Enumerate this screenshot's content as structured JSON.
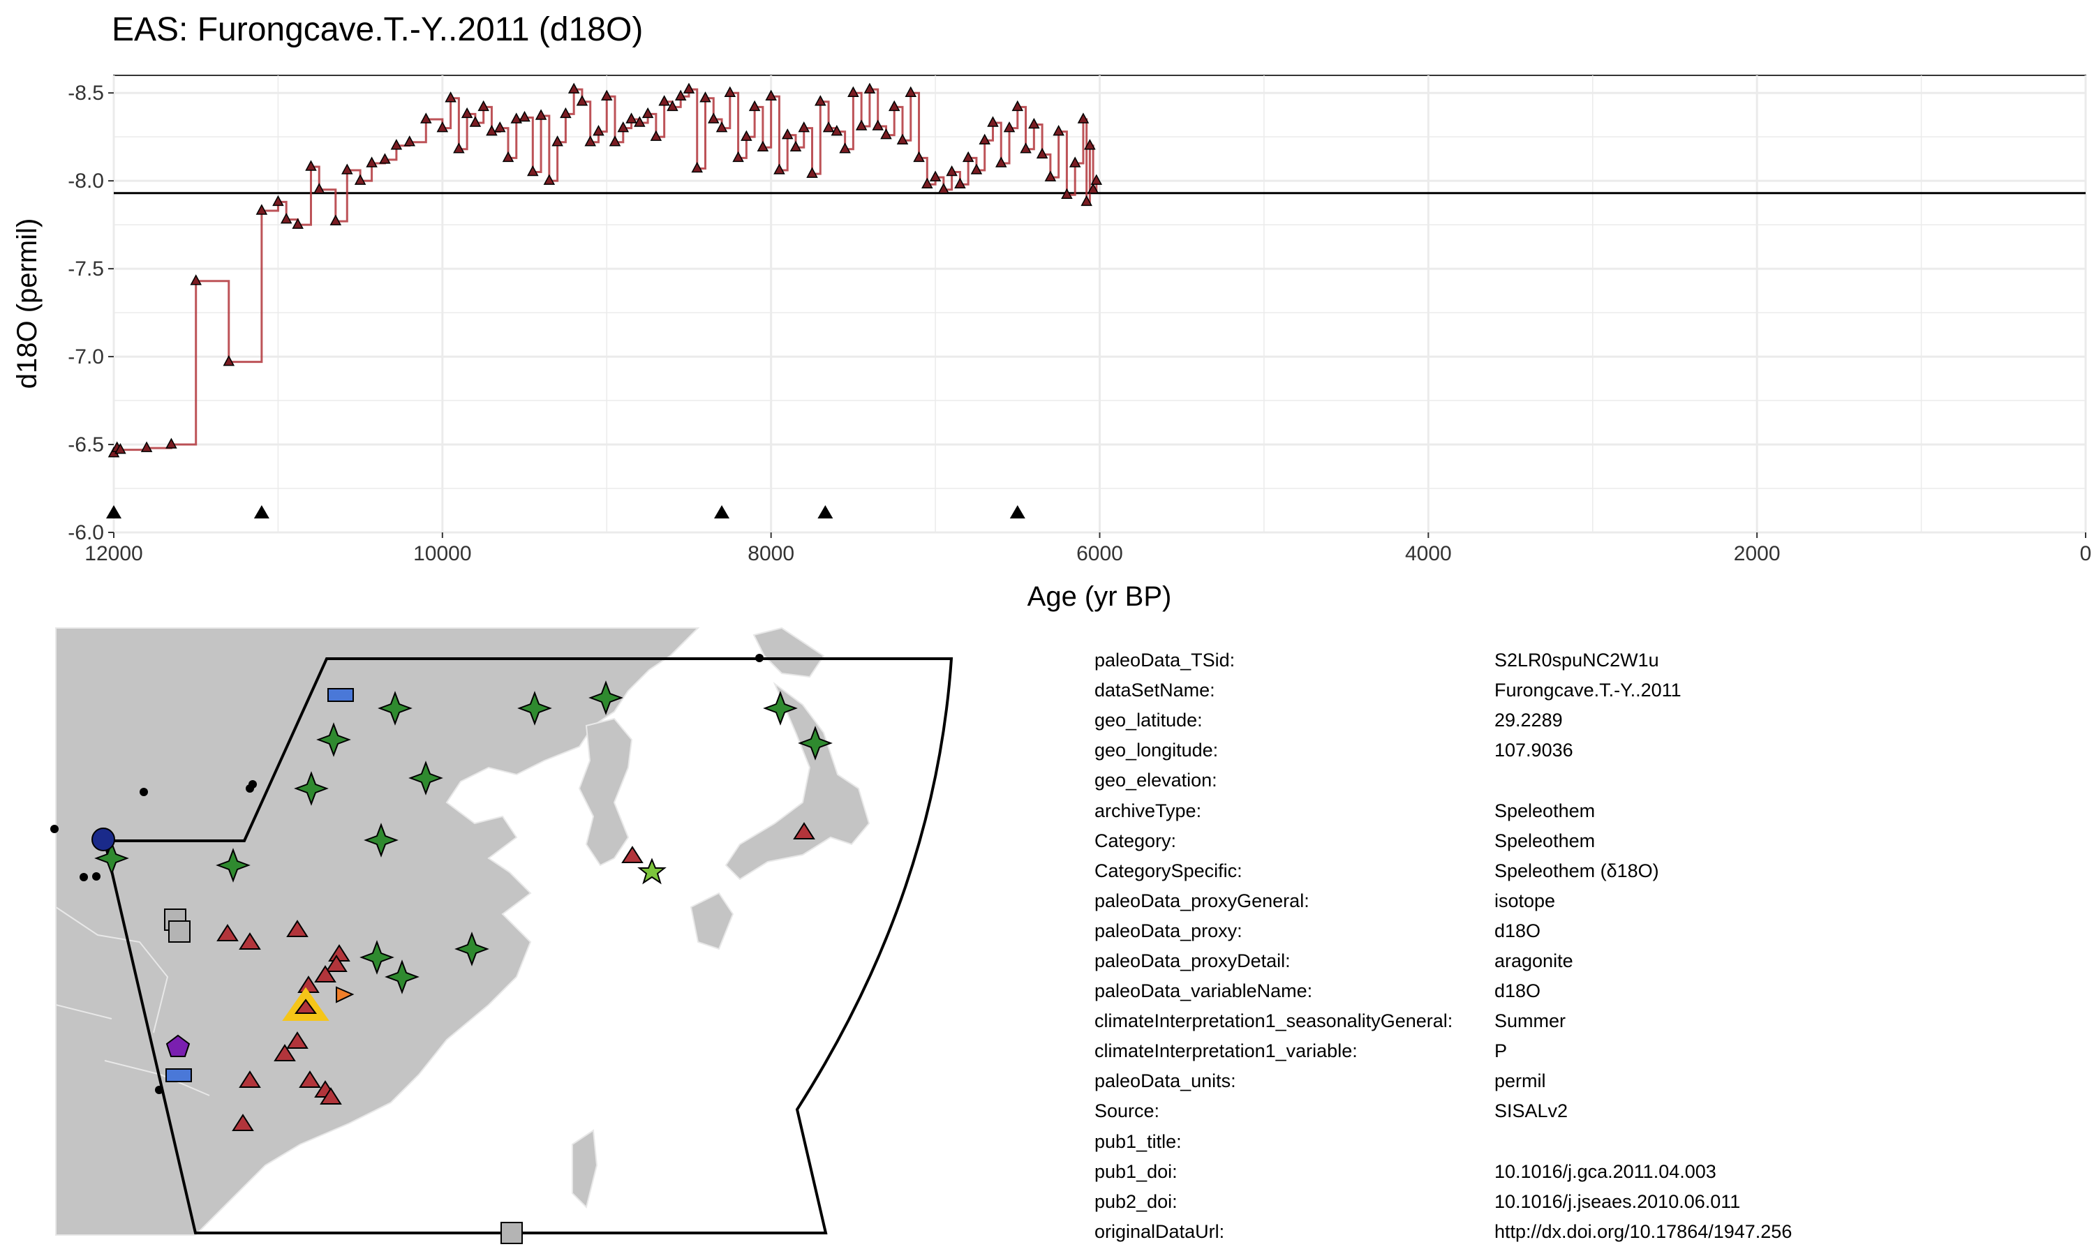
{
  "chart_data": {
    "type": "line",
    "title": "EAS: Furongcave.T.-Y..2011 (d18O)",
    "xlabel": "Age (yr BP)",
    "ylabel": "d18O (permil)",
    "xlim": [
      12000,
      0
    ],
    "ylim": [
      -6.0,
      -8.6
    ],
    "y_reversed": true,
    "x_reversed": true,
    "grid": true,
    "xticks": [
      "12000",
      "10000",
      "8000",
      "6000",
      "4000",
      "2000",
      "0"
    ],
    "yticks": [
      "-8.5",
      "-8.0",
      "-7.5",
      "-7.0",
      "-6.5",
      "-6.0"
    ],
    "reference_line_y": -7.93,
    "series": [
      {
        "style": "step",
        "color": "#b2353b",
        "marker": "triangle",
        "x": [
          12000,
          11980,
          11960,
          11800,
          11650,
          11500,
          11300,
          11100,
          11000,
          10950,
          10880,
          10800,
          10750,
          10650,
          10580,
          10500,
          10430,
          10350,
          10280,
          10200,
          10100,
          10000,
          9950,
          9900,
          9850,
          9800,
          9750,
          9700,
          9650,
          9600,
          9550,
          9500,
          9450,
          9400,
          9350,
          9300,
          9250,
          9200,
          9150,
          9100,
          9050,
          9000,
          8950,
          8900,
          8850,
          8800,
          8750,
          8700,
          8650,
          8600,
          8550,
          8500,
          8450,
          8400,
          8350,
          8300,
          8250,
          8200,
          8150,
          8100,
          8050,
          8000,
          7950,
          7900,
          7850,
          7800,
          7750,
          7700,
          7650,
          7600,
          7550,
          7500,
          7450,
          7400,
          7350,
          7300,
          7250,
          7200,
          7150,
          7100,
          7050,
          7000,
          6950,
          6900,
          6850,
          6800,
          6750,
          6700,
          6650,
          6600,
          6550,
          6500,
          6450,
          6400,
          6350,
          6300,
          6250,
          6200,
          6150,
          6100,
          6080,
          6060,
          6040,
          6020
        ],
        "y": [
          -6.45,
          -6.48,
          -6.47,
          -6.48,
          -6.5,
          -7.43,
          -6.97,
          -7.83,
          -7.88,
          -7.78,
          -7.75,
          -8.08,
          -7.95,
          -7.77,
          -8.06,
          -8.0,
          -8.1,
          -8.12,
          -8.2,
          -8.22,
          -8.35,
          -8.3,
          -8.47,
          -8.18,
          -8.38,
          -8.33,
          -8.42,
          -8.28,
          -8.3,
          -8.13,
          -8.35,
          -8.36,
          -8.05,
          -8.37,
          -8.0,
          -8.22,
          -8.38,
          -8.52,
          -8.45,
          -8.22,
          -8.28,
          -8.48,
          -8.22,
          -8.3,
          -8.35,
          -8.33,
          -8.38,
          -8.25,
          -8.45,
          -8.42,
          -8.48,
          -8.52,
          -8.07,
          -8.47,
          -8.35,
          -8.3,
          -8.5,
          -8.13,
          -8.25,
          -8.42,
          -8.19,
          -8.48,
          -8.06,
          -8.26,
          -8.19,
          -8.3,
          -8.04,
          -8.45,
          -8.3,
          -8.28,
          -8.18,
          -8.5,
          -8.31,
          -8.52,
          -8.31,
          -8.26,
          -8.42,
          -8.23,
          -8.5,
          -8.13,
          -7.98,
          -8.02,
          -7.95,
          -8.05,
          -7.98,
          -8.13,
          -8.06,
          -8.23,
          -8.33,
          -8.1,
          -8.3,
          -8.42,
          -8.18,
          -8.32,
          -8.15,
          -8.02,
          -8.28,
          -7.92,
          -8.1,
          -8.35,
          -7.88,
          -8.2,
          -7.95,
          -8.0
        ]
      }
    ],
    "age_markers_x": [
      12000,
      11100,
      8300,
      7670,
      6500
    ]
  },
  "map": {
    "land_color": "#c4c4c4",
    "sea_color": "#ffffff",
    "border_color": "#e8e8e8",
    "region_outline_color": "#000000",
    "selected_site_color": "#f5c518"
  },
  "metadata": [
    {
      "key": "paleoData_TSid:",
      "value": "S2LR0spuNC2W1u"
    },
    {
      "key": "dataSetName:",
      "value": "Furongcave.T.-Y..2011"
    },
    {
      "key": "geo_latitude:",
      "value": "29.2289"
    },
    {
      "key": "geo_longitude:",
      "value": "107.9036"
    },
    {
      "key": "geo_elevation:",
      "value": ""
    },
    {
      "key": "archiveType:",
      "value": "Speleothem"
    },
    {
      "key": "Category:",
      "value": "Speleothem"
    },
    {
      "key": "CategorySpecific:",
      "value": "Speleothem (δ18O)"
    },
    {
      "key": "paleoData_proxyGeneral:",
      "value": "isotope"
    },
    {
      "key": "paleoData_proxy:",
      "value": "d18O"
    },
    {
      "key": "paleoData_proxyDetail:",
      "value": "aragonite"
    },
    {
      "key": "paleoData_variableName:",
      "value": "d18O"
    },
    {
      "key": "climateInterpretation1_seasonalityGeneral:",
      "value": "Summer"
    },
    {
      "key": "climateInterpretation1_variable:",
      "value": "P"
    },
    {
      "key": "paleoData_units:",
      "value": "permil"
    },
    {
      "key": "Source:",
      "value": "SISALv2"
    },
    {
      "key": "pub1_title:",
      "value": ""
    },
    {
      "key": "pub1_doi:",
      "value": "10.1016/j.gca.2011.04.003"
    },
    {
      "key": "pub2_doi:",
      "value": "10.1016/j.jseaes.2010.06.011"
    },
    {
      "key": "originalDataUrl:",
      "value": "http://dx.doi.org/10.17864/1947.256"
    }
  ]
}
